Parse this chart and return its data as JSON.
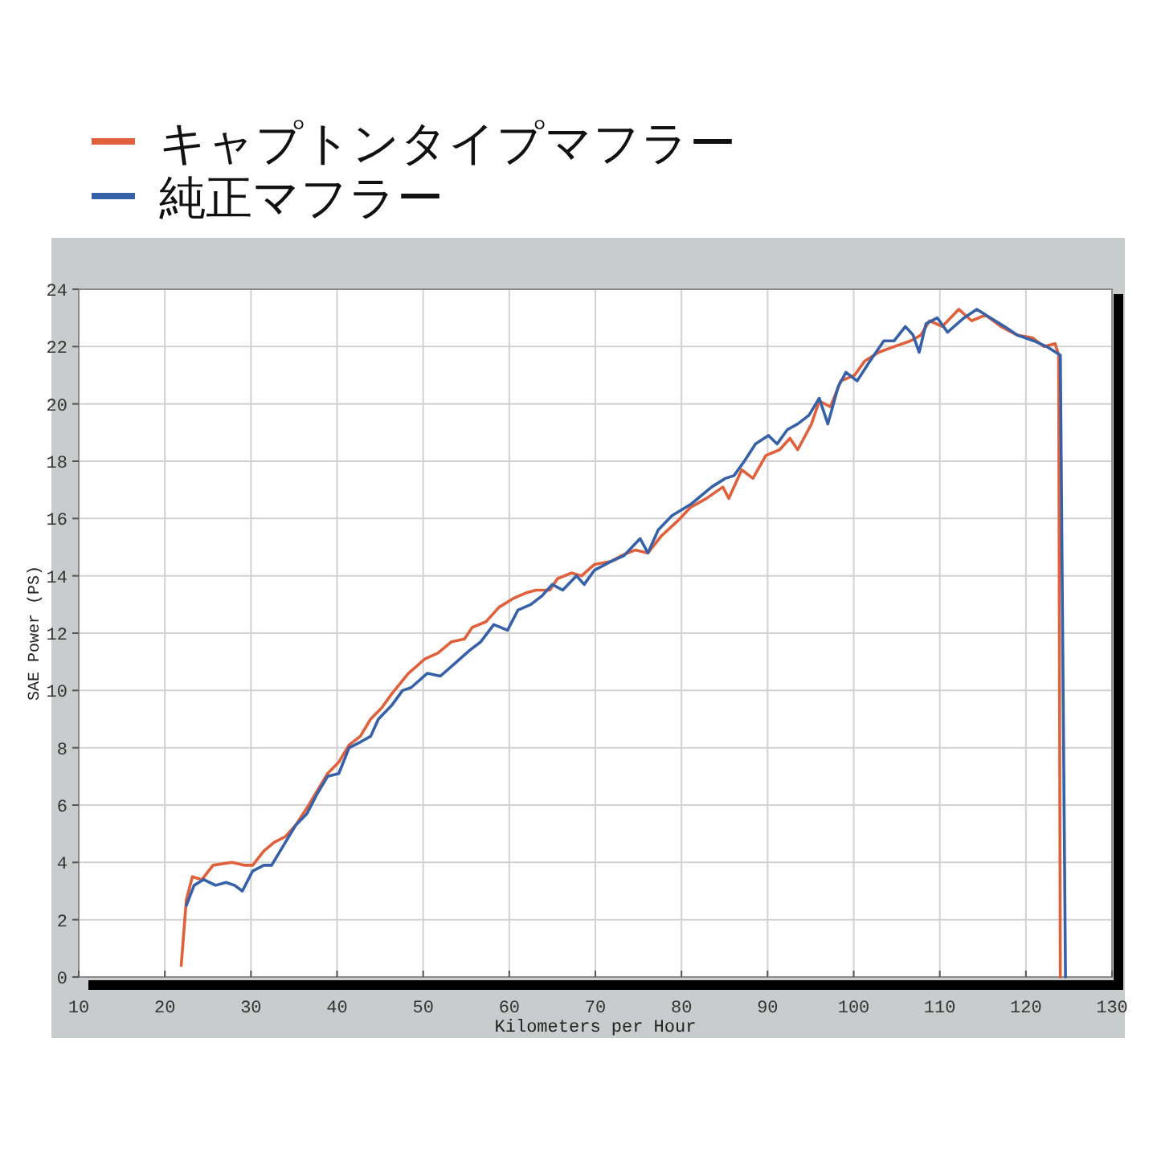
{
  "chart_data": {
    "type": "line",
    "xlabel": "Kilometers per Hour",
    "ylabel": "SAE Power (PS)",
    "xlim": [
      10,
      130
    ],
    "ylim": [
      0,
      24
    ],
    "xticks": [
      10,
      20,
      30,
      40,
      50,
      60,
      70,
      80,
      90,
      100,
      110,
      120,
      130
    ],
    "yticks": [
      0,
      2,
      4,
      6,
      8,
      10,
      12,
      14,
      16,
      18,
      20,
      22,
      24
    ],
    "grid": true,
    "legend": "top left",
    "series": [
      {
        "name": "キャプトンタイプマフラー",
        "color": "#e0603c",
        "x": [
          21.9,
          22.5,
          23.2,
          24.3,
          25.6,
          27.8,
          29.3,
          30.2,
          31.5,
          32.7,
          34.0,
          35.2,
          36.5,
          37.7,
          38.9,
          40.2,
          41.4,
          42.7,
          43.9,
          45.2,
          46.4,
          48.3,
          50.2,
          51.7,
          53.3,
          54.8,
          55.7,
          57.3,
          58.8,
          60.4,
          61.9,
          63.1,
          64.7,
          65.6,
          67.2,
          68.4,
          69.9,
          71.8,
          73.0,
          74.6,
          76.1,
          77.7,
          79.5,
          81.1,
          82.9,
          84.8,
          85.5,
          87.0,
          88.3,
          89.8,
          91.4,
          92.6,
          93.5,
          95.1,
          96.0,
          97.3,
          98.5,
          100.1,
          101.3,
          102.9,
          104.7,
          106.6,
          107.8,
          108.8,
          110.3,
          112.2,
          113.7,
          115.3,
          117.1,
          119.0,
          120.8,
          122.1,
          123.4,
          123.8,
          124.0
        ],
        "values": [
          0.4,
          2.7,
          3.5,
          3.4,
          3.9,
          4.0,
          3.9,
          3.9,
          4.4,
          4.7,
          4.9,
          5.3,
          5.9,
          6.5,
          7.1,
          7.5,
          8.1,
          8.4,
          9.0,
          9.4,
          9.9,
          10.6,
          11.1,
          11.3,
          11.7,
          11.8,
          12.2,
          12.4,
          12.9,
          13.2,
          13.4,
          13.5,
          13.5,
          13.9,
          14.1,
          14.0,
          14.4,
          14.5,
          14.7,
          14.9,
          14.8,
          15.4,
          15.9,
          16.4,
          16.7,
          17.1,
          16.7,
          17.7,
          17.4,
          18.2,
          18.4,
          18.8,
          18.4,
          19.3,
          20.1,
          19.9,
          20.8,
          21.0,
          21.5,
          21.8,
          22.0,
          22.2,
          22.4,
          22.9,
          22.7,
          23.3,
          22.9,
          23.1,
          22.7,
          22.4,
          22.3,
          22.0,
          22.1,
          21.7,
          0.0
        ]
      },
      {
        "name": "純正マフラー",
        "color": "#3660a8",
        "x": [
          22.5,
          23.4,
          24.5,
          25.9,
          27.1,
          28.1,
          29.0,
          30.2,
          31.5,
          32.4,
          34.0,
          35.2,
          36.5,
          37.7,
          38.9,
          40.2,
          41.4,
          42.7,
          43.9,
          44.8,
          46.4,
          47.6,
          48.6,
          50.5,
          52.0,
          53.9,
          55.4,
          56.7,
          58.2,
          59.8,
          61.0,
          62.5,
          63.8,
          65.0,
          66.2,
          67.8,
          68.7,
          69.9,
          71.8,
          73.3,
          75.2,
          76.1,
          77.3,
          78.9,
          81.1,
          83.5,
          85.1,
          86.1,
          87.3,
          88.6,
          90.1,
          91.1,
          92.3,
          93.5,
          94.8,
          96.0,
          97.0,
          98.2,
          99.1,
          100.4,
          101.9,
          103.5,
          104.7,
          106.0,
          106.9,
          107.6,
          108.4,
          109.7,
          110.9,
          112.8,
          114.3,
          115.9,
          117.5,
          119.0,
          120.9,
          122.4,
          124.0,
          124.6
        ],
        "values": [
          2.5,
          3.2,
          3.4,
          3.2,
          3.3,
          3.2,
          3.0,
          3.7,
          3.9,
          3.9,
          4.7,
          5.3,
          5.7,
          6.4,
          7.0,
          7.1,
          8.0,
          8.2,
          8.4,
          9.0,
          9.5,
          10.0,
          10.1,
          10.6,
          10.5,
          11.0,
          11.4,
          11.7,
          12.3,
          12.1,
          12.8,
          13.0,
          13.3,
          13.7,
          13.5,
          14.0,
          13.7,
          14.2,
          14.5,
          14.7,
          15.3,
          14.8,
          15.6,
          16.1,
          16.5,
          17.1,
          17.4,
          17.5,
          18.0,
          18.6,
          18.9,
          18.6,
          19.1,
          19.3,
          19.6,
          20.2,
          19.3,
          20.6,
          21.1,
          20.8,
          21.5,
          22.2,
          22.2,
          22.7,
          22.4,
          21.8,
          22.8,
          23.0,
          22.5,
          23.0,
          23.3,
          23.0,
          22.7,
          22.4,
          22.2,
          22.0,
          21.7,
          0.0
        ]
      }
    ]
  }
}
